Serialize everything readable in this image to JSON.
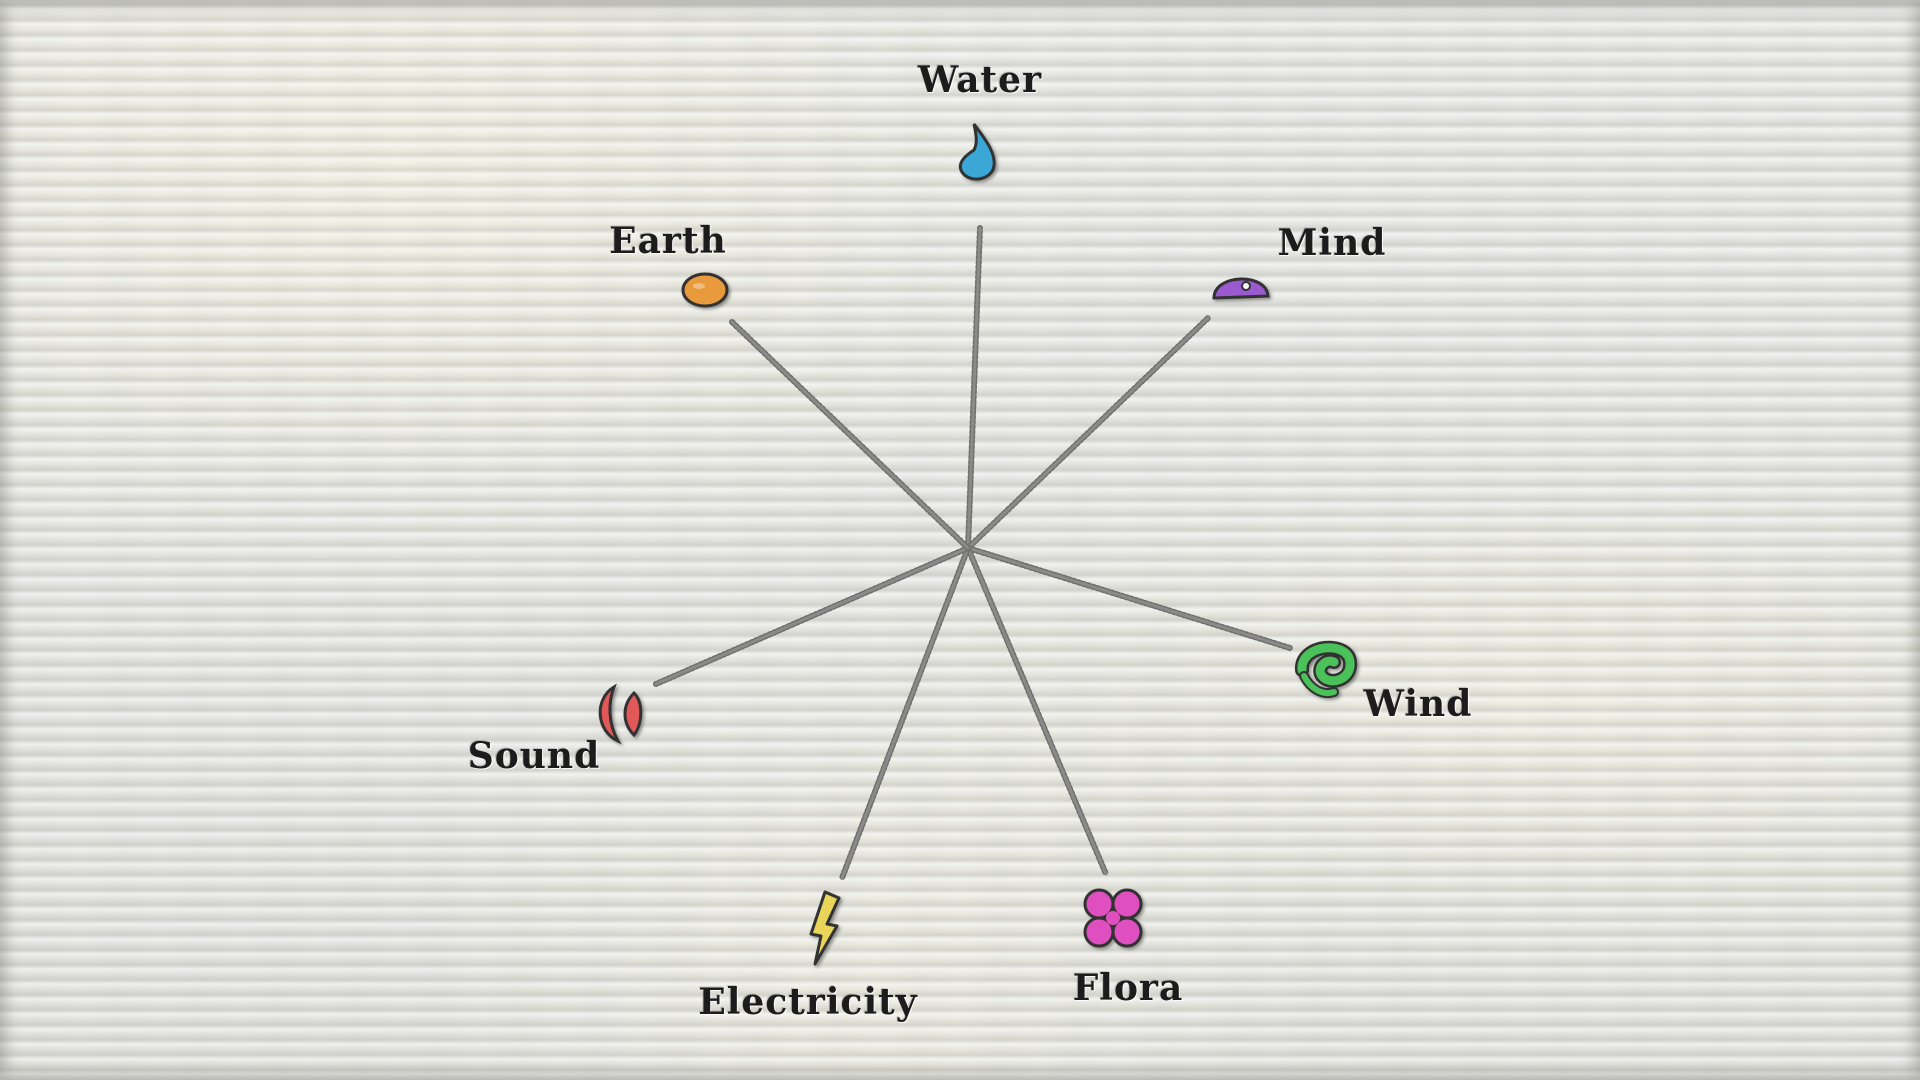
{
  "diagram": {
    "nodes": [
      {
        "id": "water",
        "label": "Water",
        "icon": "water-drop-icon",
        "color": "#3ba7d6"
      },
      {
        "id": "mind",
        "label": "Mind",
        "icon": "mind-dome-icon",
        "color": "#9b5ad0"
      },
      {
        "id": "wind",
        "label": "Wind",
        "icon": "wind-swirl-icon",
        "color": "#4cc15a"
      },
      {
        "id": "flora",
        "label": "Flora",
        "icon": "flora-petals-icon",
        "color": "#e04fbf"
      },
      {
        "id": "electricity",
        "label": "Electricity",
        "icon": "lightning-bolt-icon",
        "color": "#e8d55a"
      },
      {
        "id": "sound",
        "label": "Sound",
        "icon": "sound-waves-icon",
        "color": "#e05858"
      },
      {
        "id": "earth",
        "label": "Earth",
        "icon": "earth-stone-icon",
        "color": "#e89a3c"
      }
    ],
    "edges": [
      {
        "from": "center",
        "to": "water"
      },
      {
        "from": "center",
        "to": "mind"
      },
      {
        "from": "center",
        "to": "wind"
      },
      {
        "from": "center",
        "to": "flora"
      },
      {
        "from": "center",
        "to": "electricity"
      },
      {
        "from": "center",
        "to": "sound"
      },
      {
        "from": "center",
        "to": "earth"
      }
    ]
  }
}
